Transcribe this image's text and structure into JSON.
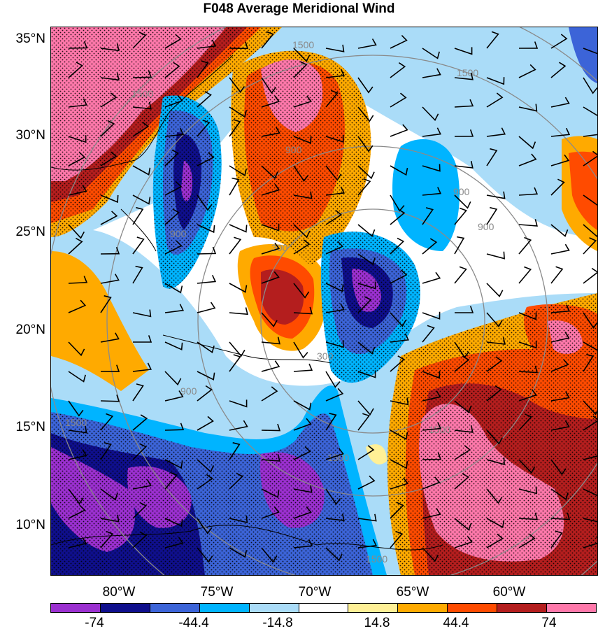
{
  "title": "F048 Average Meridional Wind",
  "lat_labels": [
    "35°N",
    "30°N",
    "25°N",
    "20°N",
    "15°N",
    "10°N"
  ],
  "lon_labels": [
    "80°W",
    "75°W",
    "70°W",
    "65°W",
    "60°W"
  ],
  "contour_labels": [
    "1500",
    "1500",
    "1500",
    "900",
    "900",
    "900",
    "900",
    "300",
    "300",
    "900",
    "1500",
    "1500",
    "1500",
    "1500"
  ],
  "colorbar": {
    "colors": [
      "#9b30d0",
      "#0f0f8c",
      "#3c64d8",
      "#00b4ff",
      "#aadcf8",
      "#ffffff",
      "#fff096",
      "#ffaa00",
      "#ff4b00",
      "#b41e1e",
      "#ff78aa"
    ],
    "tick_labels": [
      "-74",
      "-44.4",
      "-14.8",
      "14.8",
      "44.4",
      "74"
    ]
  }
}
